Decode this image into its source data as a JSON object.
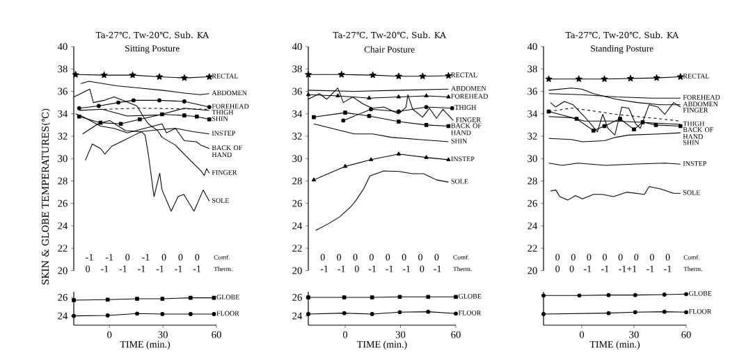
{
  "chart_data": [
    {
      "type": "line",
      "title": "Ta-27℃, Tw-20℃, Sub. KA",
      "subtitle": "Sitting Posture",
      "ylabel": "SKIN & GLOBE TEMPERATURES(℃)",
      "color": "#000000",
      "xlim": [
        -20,
        60
      ],
      "ylim": [
        20,
        40
      ],
      "yticks": [
        20,
        22,
        24,
        26,
        28,
        30,
        32,
        34,
        36,
        38,
        40
      ],
      "tick_labels": "y",
      "annotations": [
        "-1 -1 0 -1 0 0 0",
        "0 -1 -1 -1 -1 -1 -1",
        "Comf.",
        "Therm."
      ],
      "series": [
        {
          "name": "RECTAL",
          "marker": "star",
          "x": [
            -19,
            -3,
            13,
            28,
            42,
            56
          ],
          "values": [
            37.5,
            37.45,
            37.45,
            37.3,
            37.2,
            37.3
          ]
        },
        {
          "name": "ABDOMEN",
          "x": [
            -16,
            -11.5,
            4,
            17,
            29.5,
            42,
            51,
            56
          ],
          "values": [
            36.7,
            36.9,
            36.5,
            36.3,
            36.1,
            35.85,
            35.7,
            35.8
          ]
        },
        {
          "name": "FOREHEAD",
          "marker": "circle",
          "x": [
            -17,
            -6,
            5,
            13.5,
            28,
            42,
            56
          ],
          "values": [
            34.5,
            34.7,
            35.0,
            35.2,
            35.2,
            35.1,
            34.6
          ]
        },
        {
          "name": "THIGH",
          "x": [
            -17,
            -4,
            10,
            28,
            42,
            56
          ],
          "values": [
            34.3,
            34.4,
            33.8,
            33.9,
            34.5,
            34.3
          ]
        },
        {
          "name": "SHIN",
          "marker": "square",
          "x": [
            -17,
            -5,
            6.4,
            17,
            29.5,
            42,
            49,
            56
          ],
          "values": [
            33.75,
            33.2,
            33.1,
            33.5,
            33.95,
            33.85,
            33.75,
            33.5
          ]
        },
        {
          "name": "INSTEP",
          "x": [
            -15,
            -6.4,
            0,
            9,
            17,
            29.5,
            37,
            47,
            56
          ],
          "values": [
            32.2,
            33.1,
            33.4,
            32.5,
            32.4,
            32.6,
            32.7,
            32.4,
            32.2
          ]
        },
        {
          "name": "BACK OF HAND",
          "x": [
            -19,
            -15,
            -5,
            2.6,
            10,
            29.5,
            32,
            37,
            42,
            48.7,
            51.3,
            56
          ],
          "values": [
            34.0,
            33.75,
            32.9,
            32.7,
            32.3,
            33.1,
            32.3,
            32.7,
            31.6,
            31.5,
            31.2,
            30.9
          ]
        },
        {
          "name": "FINGER",
          "x": [
            -20,
            -16.7,
            -11,
            -9,
            -3,
            2.6,
            7.7,
            15.4,
            19.2,
            21.8,
            27,
            29.5,
            37,
            45,
            51.3,
            53.2,
            54.5,
            56
          ],
          "values": [
            35.5,
            35.75,
            36.2,
            35.0,
            35.2,
            35.5,
            35.2,
            34.7,
            33.7,
            33.1,
            32.5,
            31.9,
            31.2,
            29.9,
            28.9,
            28.5,
            29.1,
            28.7
          ]
        },
        {
          "name": "SOLE",
          "x": [
            -13.5,
            -9.6,
            -5,
            -2.6,
            1.3,
            7.7,
            14,
            18,
            20,
            21.8,
            25,
            28.2,
            29.5,
            34.6,
            38.5,
            41.7,
            47.4,
            52.6,
            56
          ],
          "values": [
            29.85,
            31.3,
            30.9,
            30.4,
            31.1,
            31.6,
            32.1,
            32.4,
            32.1,
            30.4,
            26.6,
            28.7,
            27.2,
            25.3,
            26.6,
            26.8,
            25.3,
            27.2,
            26.2
          ]
        },
        {
          "line_style": "dashed",
          "x": [
            -3,
            17,
            56
          ],
          "values": [
            34.4,
            34.5,
            34.4
          ]
        }
      ]
    },
    {
      "type": "line",
      "xlabel": "TIME (min.)",
      "color": "#000000",
      "xlim": [
        -20,
        60
      ],
      "ylim": [
        23,
        26.6
      ],
      "xticks": [
        0,
        30,
        60
      ],
      "yticks": [
        24,
        26
      ],
      "series": [
        {
          "name": "GLOBE",
          "marker": "square",
          "x": [
            -20,
            -1,
            15.5,
            29.7,
            45.5,
            58.6
          ],
          "values": [
            25.7,
            25.75,
            25.85,
            25.85,
            25.95,
            25.95
          ]
        },
        {
          "name": "FLOOR",
          "marker": "circle",
          "x": [
            -20,
            -1,
            15.5,
            29.7,
            45.5,
            58.6
          ],
          "values": [
            24.0,
            24.05,
            24.25,
            24.2,
            24.2,
            24.2
          ]
        }
      ]
    },
    {
      "type": "line",
      "title": "Ta-27℃, Tw-20℃, Sub. KA",
      "subtitle": "Chair Posture",
      "color": "#000000",
      "xlim": [
        -20,
        60
      ],
      "ylim": [
        20,
        40
      ],
      "yticks": [
        20,
        22,
        24,
        26,
        28,
        30,
        32,
        34,
        36,
        38,
        40
      ],
      "tick_labels": "y",
      "annotations": [
        "0 0 0 0 0 0 0 0",
        "-1 -1 0 -1 -1 -1 0 -1",
        "Comf.",
        "Therm."
      ],
      "series": [
        {
          "name": "RECTAL",
          "marker": "star",
          "x": [
            -20,
            -2,
            15,
            29,
            42,
            56
          ],
          "values": [
            37.5,
            37.5,
            37.45,
            37.35,
            37.35,
            37.4
          ]
        },
        {
          "name": "ABDOMEN",
          "x": [
            -20,
            5,
            30,
            56
          ],
          "values": [
            36.1,
            36.0,
            36.1,
            36.2
          ]
        },
        {
          "name": "FOREHEAD",
          "marker": "triangle",
          "x": [
            -20,
            -4,
            13,
            29,
            44,
            56
          ],
          "values": [
            35.7,
            35.6,
            35.4,
            35.5,
            35.6,
            35.5
          ]
        },
        {
          "name": "THIGH",
          "marker": "circle",
          "x": [
            -1,
            14,
            29,
            44,
            58
          ],
          "values": [
            33.4,
            34.4,
            34.2,
            34.6,
            34.5
          ]
        },
        {
          "name": "FINGER",
          "x": [
            -20,
            -14,
            -10,
            -4,
            -1,
            4,
            9.5,
            14.7,
            21,
            29,
            33,
            34,
            36.6,
            42,
            45.7,
            49.5,
            53,
            58.6
          ],
          "values": [
            35.3,
            35.8,
            35.3,
            36.3,
            35.0,
            35.5,
            34.9,
            34.5,
            34.6,
            34.0,
            34.6,
            35.7,
            34.4,
            33.7,
            34.5,
            33.6,
            34.4,
            33.4
          ]
        },
        {
          "name": "BACK OF HAND",
          "marker": "square",
          "x": [
            -17,
            0,
            13,
            29,
            44,
            56
          ],
          "values": [
            33.7,
            34.1,
            33.8,
            33.3,
            33.0,
            32.9
          ]
        },
        {
          "name": "SHIN",
          "x": [
            -17,
            -5,
            5,
            15,
            25,
            40,
            56
          ],
          "values": [
            33.1,
            32.6,
            32.2,
            32.2,
            31.9,
            31.7,
            31.5
          ]
        },
        {
          "name": "INSTEP",
          "marker": "triangle",
          "x": [
            -17,
            0,
            14,
            29,
            44,
            56
          ],
          "values": [
            28.1,
            29.3,
            29.9,
            30.4,
            30.1,
            29.9
          ]
        },
        {
          "name": "SOLE",
          "x": [
            -16,
            -10,
            -3,
            3,
            6,
            10,
            13.4,
            21,
            29,
            36.6,
            42.5,
            49.5,
            56
          ],
          "values": [
            23.6,
            24.1,
            24.8,
            25.7,
            26.3,
            27.3,
            28.45,
            28.9,
            28.85,
            28.65,
            28.65,
            28.1,
            27.9
          ]
        }
      ]
    },
    {
      "type": "line",
      "xlabel": "TIME (min.)",
      "color": "#000000",
      "xlim": [
        -20,
        60
      ],
      "ylim": [
        23,
        26.6
      ],
      "xticks": [
        0,
        30,
        60
      ],
      "yticks": [
        24,
        26
      ],
      "series": [
        {
          "name": "GLOBE",
          "marker": "square",
          "x": [
            -20,
            -0.5,
            14.6,
            29.6,
            45,
            60
          ],
          "values": [
            26.0,
            26.0,
            26.0,
            26.05,
            26.05,
            26.05
          ]
        },
        {
          "name": "FLOOR",
          "marker": "circle",
          "x": [
            -20,
            -0.5,
            14.6,
            29.6,
            45,
            60
          ],
          "values": [
            24.2,
            24.3,
            24.2,
            24.4,
            24.45,
            24.25
          ]
        }
      ]
    },
    {
      "type": "line",
      "title": "Ta-27℃, Tw-20℃, Sub. KA",
      "subtitle": "Standing Posture",
      "color": "#000000",
      "xlim": [
        -22,
        60
      ],
      "ylim": [
        20,
        40
      ],
      "yticks": [
        20,
        22,
        24,
        26,
        28,
        30,
        32,
        34,
        36,
        38,
        40
      ],
      "tick_labels": "y",
      "annotations": [
        "0 0 0 0 0 0 0 0",
        "0 0 -1 -1 -1+1 -1 -1",
        "Comf.",
        "Therm."
      ],
      "series": [
        {
          "name": "RECTAL",
          "marker": "star",
          "x": [
            -19,
            -1.7,
            13,
            28,
            43,
            56.7
          ],
          "values": [
            37.1,
            37.1,
            37.1,
            37.15,
            37.2,
            37.3
          ]
        },
        {
          "name": "FOREHEAD",
          "x": [
            -19,
            0,
            20,
            40,
            56.7
          ],
          "values": [
            35.8,
            35.7,
            35.5,
            35.4,
            35.4
          ]
        },
        {
          "name": "ABDOMEN",
          "x": [
            -19,
            -6,
            0,
            6.7,
            19.5,
            32,
            45,
            56.7
          ],
          "values": [
            36.1,
            36.3,
            36.2,
            35.8,
            35.3,
            35.0,
            34.8,
            34.8
          ]
        },
        {
          "name": "FINGER",
          "x": [
            -18,
            -15,
            -10,
            -5,
            1.5,
            9,
            12,
            15,
            19,
            23,
            27,
            31,
            33.6,
            38.7,
            43.8,
            47.7,
            52.8,
            56.7
          ],
          "values": [
            35.0,
            34.6,
            35.1,
            34.8,
            33.75,
            32.4,
            33.95,
            32.7,
            32.1,
            34.6,
            34.5,
            33.1,
            32.7,
            34.8,
            34.6,
            33.95,
            35.0,
            34.6
          ]
        },
        {
          "name": "BACK OF HAND",
          "marker": "square",
          "x": [
            -19,
            -3,
            6.7,
            13,
            22,
            30,
            35,
            42.6,
            56.7
          ],
          "values": [
            34.2,
            33.55,
            32.5,
            32.9,
            33.55,
            32.6,
            33.25,
            33.0,
            32.9
          ]
        },
        {
          "name": "THIGH",
          "x": [
            -19,
            -6,
            1.5,
            19.5,
            32,
            56.7
          ],
          "values": [
            33.75,
            33.65,
            33.35,
            33.35,
            33.25,
            33.05
          ]
        },
        {
          "name": "SHIN",
          "x": [
            -19,
            -6,
            0.3,
            13,
            19.5,
            27,
            45,
            56.7
          ],
          "values": [
            31.8,
            31.7,
            31.5,
            31.6,
            31.9,
            32.1,
            32.2,
            32.3
          ]
        },
        {
          "name": "INSTEP",
          "x": [
            -19,
            -11.3,
            -2.3,
            13.7,
            29,
            47.7,
            56.7
          ],
          "values": [
            29.6,
            29.4,
            29.6,
            29.4,
            29.5,
            29.6,
            29.5
          ]
        },
        {
          "name": "SOLE",
          "x": [
            -18,
            -15,
            -12.6,
            -8,
            -3.6,
            0.3,
            6.7,
            11.8,
            18.2,
            26,
            36,
            38.7,
            45,
            52.8,
            56.7
          ],
          "values": [
            27.1,
            27.2,
            26.6,
            26.3,
            26.7,
            26.4,
            26.8,
            26.8,
            26.6,
            27.0,
            26.8,
            27.5,
            27.3,
            26.9,
            26.9
          ]
        },
        {
          "line_style": "dashed",
          "x": [
            -19,
            -6,
            6.7,
            19.5,
            32,
            45,
            56.7
          ],
          "values": [
            34.2,
            34.5,
            34.25,
            33.95,
            33.75,
            33.55,
            33.35
          ]
        }
      ]
    },
    {
      "type": "line",
      "xlabel": "TIME (min.)",
      "color": "#000000",
      "xlim": [
        -22,
        60
      ],
      "ylim": [
        23,
        26.6
      ],
      "xticks": [
        0,
        30,
        60
      ],
      "tick_labels": "x",
      "series": [
        {
          "name": "GLOBE",
          "marker": "circle",
          "x": [
            -22,
            -1.4,
            15.4,
            30.7,
            47.5,
            60
          ],
          "values": [
            26.2,
            26.2,
            26.25,
            26.25,
            26.3,
            26.35
          ]
        },
        {
          "name": "FLOOR",
          "marker": "circle",
          "x": [
            -22,
            15.4,
            30.7,
            47.5,
            60
          ],
          "values": [
            24.2,
            24.3,
            24.4,
            24.45,
            24.4
          ]
        }
      ]
    }
  ]
}
